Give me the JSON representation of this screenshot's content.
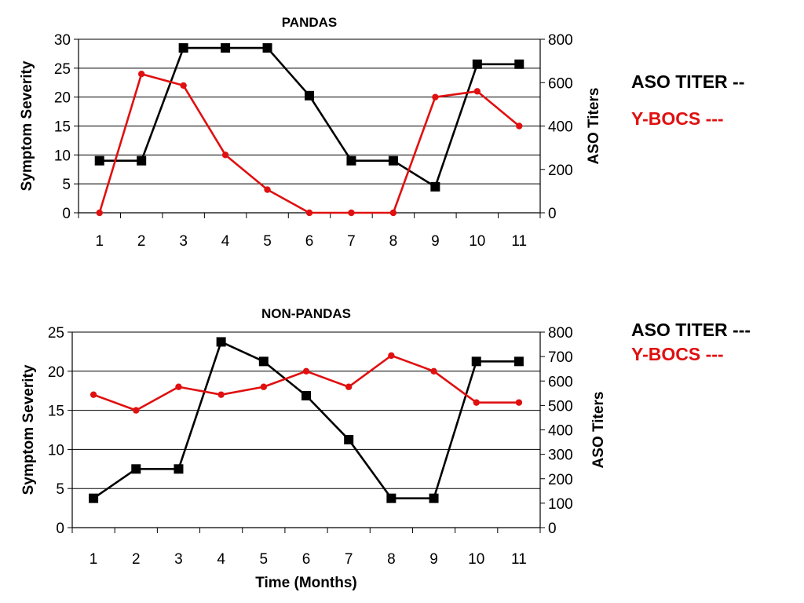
{
  "chart_data": [
    {
      "type": "line",
      "title": "PANDAS",
      "xlabel": "",
      "ylabel_left": "Symptom Severity",
      "ylabel_right": "ASO Titers",
      "x": [
        "1",
        "2",
        "3",
        "4",
        "5",
        "6",
        "7",
        "8",
        "9",
        "10",
        "11"
      ],
      "ylim_left": [
        0,
        30
      ],
      "yticks_left": [
        "0",
        "5",
        "10",
        "15",
        "20",
        "25",
        "30"
      ],
      "ylim_right": [
        0,
        800
      ],
      "yticks_right": [
        "0",
        "200",
        "400",
        "600",
        "800"
      ],
      "grid": true,
      "legend": "right",
      "series": [
        {
          "name": "ASO TITER --",
          "axis": "right",
          "marker": "square",
          "color": "#000000",
          "values": [
            240,
            240,
            760,
            760,
            760,
            540,
            240,
            240,
            120,
            685,
            685
          ]
        },
        {
          "name": "Y-BOCS ---",
          "axis": "left",
          "marker": "circle",
          "color": "#e01010",
          "values": [
            0,
            24,
            22,
            10,
            4,
            0,
            0,
            0,
            20,
            21,
            15
          ]
        }
      ]
    },
    {
      "type": "line",
      "title": "NON-PANDAS",
      "xlabel": "Time (Months)",
      "ylabel_left": "Symptom Severity",
      "ylabel_right": "ASO Titers",
      "x": [
        "1",
        "2",
        "3",
        "4",
        "5",
        "6",
        "7",
        "8",
        "9",
        "10",
        "11"
      ],
      "ylim_left": [
        0,
        25
      ],
      "yticks_left": [
        "0",
        "5",
        "10",
        "15",
        "20",
        "25"
      ],
      "ylim_right": [
        0,
        800
      ],
      "yticks_right": [
        "0",
        "100",
        "200",
        "300",
        "400",
        "500",
        "600",
        "700",
        "800"
      ],
      "grid": true,
      "legend": "right",
      "series": [
        {
          "name": "ASO TITER ---",
          "axis": "right",
          "marker": "square",
          "color": "#000000",
          "values": [
            120,
            240,
            240,
            760,
            680,
            540,
            360,
            120,
            120,
            680,
            680
          ]
        },
        {
          "name": "Y-BOCS ---",
          "axis": "left",
          "marker": "circle",
          "color": "#e01010",
          "values": [
            17,
            15,
            18,
            17,
            18,
            20,
            18,
            22,
            20,
            16,
            16
          ]
        }
      ]
    }
  ]
}
